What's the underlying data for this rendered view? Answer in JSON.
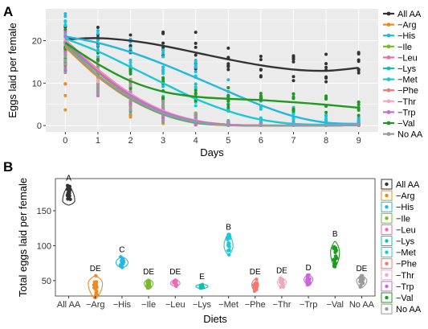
{
  "chart_data": [
    {
      "panel": "A",
      "type": "scatter",
      "xlabel": "Days",
      "ylabel": "Eggs laid per female",
      "xlim": [
        -0.6,
        9.6
      ],
      "ylim": [
        -1.5,
        27.5
      ],
      "x_ticks": [
        0,
        1,
        2,
        3,
        4,
        5,
        6,
        7,
        8,
        9
      ],
      "y_ticks": [
        0,
        10,
        20
      ],
      "grid": true,
      "legend_position": "right",
      "series": [
        {
          "name": "All AA",
          "color": "#333333",
          "fit": [
            20.3,
            20.6,
            20.0,
            18.8,
            17.2,
            15.6,
            14.2,
            13.2,
            12.9,
            13.6
          ],
          "points_min": [
            17,
            18,
            17,
            15,
            13,
            11,
            10,
            10,
            9,
            11
          ],
          "points_max": [
            24,
            23.5,
            23,
            23,
            22,
            19,
            18,
            17,
            17,
            17.5
          ]
        },
        {
          "name": "−Arg",
          "color": "#f08a1e",
          "fit": [
            18.5,
            11.5,
            6.2,
            2.6,
            0.6,
            0.1,
            0.0,
            0.0,
            0.0,
            0.1
          ],
          "points_min": [
            1.5,
            3,
            1,
            0,
            0,
            0,
            0,
            0,
            0,
            0
          ],
          "points_max": [
            21,
            14,
            10,
            6,
            3,
            1,
            0.5,
            0.5,
            0.5,
            0.5
          ]
        },
        {
          "name": "−His",
          "color": "#22b8e0",
          "fit": [
            21.0,
            19.5,
            17.3,
            14.5,
            11.3,
            8.0,
            4.8,
            2.2,
            0.7,
            0.4
          ],
          "points_min": [
            16,
            15,
            12,
            9,
            6,
            2,
            0,
            0,
            0,
            0
          ],
          "points_max": [
            26.5,
            22.5,
            21,
            19,
            16,
            13,
            10,
            5,
            3,
            2
          ]
        },
        {
          "name": "−Ile",
          "color": "#7ab82e",
          "fit": [
            19.5,
            12.5,
            7.0,
            3.2,
            1.0,
            0.2,
            0.0,
            0.0,
            0.0,
            0.1
          ],
          "points_min": [
            13,
            7,
            3,
            1,
            0,
            0,
            0,
            0,
            0,
            0
          ],
          "points_max": [
            22,
            16,
            11,
            7,
            3,
            1,
            0.5,
            0.5,
            0.5,
            0.5
          ]
        },
        {
          "name": "−Leu",
          "color": "#ec6ab0",
          "fit": [
            20.0,
            13.0,
            7.3,
            3.4,
            1.1,
            0.2,
            0.0,
            0.0,
            0.0,
            0.1
          ],
          "points_min": [
            12,
            7,
            3,
            1,
            0,
            0,
            0,
            0,
            0,
            0
          ],
          "points_max": [
            23,
            16,
            11,
            7,
            3,
            1,
            0.5,
            0.5,
            0.5,
            0.5
          ]
        },
        {
          "name": "−Lys",
          "color": "#14bfb0",
          "fit": [
            19.0,
            11.8,
            6.4,
            2.7,
            0.7,
            0.1,
            0.0,
            0.0,
            0.0,
            0.1
          ],
          "points_min": [
            13,
            7,
            3,
            1,
            0,
            0,
            0,
            0,
            0,
            0
          ],
          "points_max": [
            22,
            15,
            10,
            6,
            3,
            1,
            0.5,
            0.5,
            0.5,
            0.5
          ]
        },
        {
          "name": "−Met",
          "color": "#1cc8d8",
          "fit": [
            20.5,
            17.5,
            13.8,
            10.0,
            6.3,
            3.4,
            1.4,
            0.4,
            0.2,
            0.4
          ],
          "points_min": [
            15,
            12,
            9,
            6,
            3,
            1,
            0,
            0,
            0,
            0
          ],
          "points_max": [
            25,
            22,
            19,
            15,
            12,
            8,
            6,
            4,
            2,
            1
          ]
        },
        {
          "name": "−Phe",
          "color": "#f47870",
          "fit": [
            20.2,
            13.2,
            7.5,
            3.5,
            1.2,
            0.2,
            0.0,
            0.0,
            0.0,
            0.1
          ],
          "points_min": [
            12,
            7,
            3,
            1,
            0,
            0,
            0,
            0,
            0,
            0
          ],
          "points_max": [
            23,
            16,
            11,
            7,
            3,
            1,
            0.5,
            0.5,
            0.5,
            0.5
          ]
        },
        {
          "name": "−Thr",
          "color": "#f0a8c0",
          "fit": [
            20.0,
            13.0,
            7.4,
            3.5,
            1.2,
            0.2,
            0.0,
            0.0,
            0.0,
            0.1
          ],
          "points_min": [
            12,
            7,
            3,
            1,
            0,
            0,
            0,
            0,
            0,
            0
          ],
          "points_max": [
            23,
            16,
            11,
            7,
            3,
            1,
            0.5,
            0.5,
            0.5,
            0.5
          ]
        },
        {
          "name": "−Trp",
          "color": "#cc66dd",
          "fit": [
            19.8,
            12.8,
            7.2,
            3.3,
            1.1,
            0.2,
            0.0,
            0.0,
            0.0,
            0.1
          ],
          "points_min": [
            12,
            7,
            3,
            1,
            0,
            0,
            0,
            0,
            0,
            0
          ],
          "points_max": [
            22,
            16,
            11,
            7,
            3,
            1,
            0.5,
            0.5,
            0.5,
            0.5
          ]
        },
        {
          "name": "−Val",
          "color": "#1f9a1f",
          "fit": [
            19.5,
            14.5,
            10.5,
            8.0,
            6.8,
            6.3,
            6.0,
            5.5,
            4.9,
            4.2
          ],
          "points_min": [
            14,
            11,
            7,
            6,
            5,
            4,
            4,
            3,
            3,
            2
          ],
          "points_max": [
            23,
            18,
            15,
            12,
            10,
            9,
            8,
            8,
            7,
            6
          ]
        },
        {
          "name": "No AA",
          "color": "#9a9a9a",
          "fit": [
            18.8,
            11.8,
            6.6,
            2.9,
            0.9,
            0.1,
            0.0,
            0.0,
            0.0,
            0.1
          ],
          "points_min": [
            12,
            7,
            3,
            1,
            0,
            0,
            0,
            0,
            0,
            0
          ],
          "points_max": [
            22,
            15,
            10,
            6,
            3,
            1,
            0.5,
            0.5,
            0.5,
            0.5
          ]
        }
      ]
    },
    {
      "panel": "B",
      "type": "violin",
      "xlabel": "Diets",
      "ylabel": "Total eggs laid per female",
      "ylim": [
        28,
        196
      ],
      "y_ticks": [
        50,
        100,
        150
      ],
      "grid": false,
      "legend_position": "right",
      "categories": [
        "All AA",
        "−Arg",
        "−His",
        "−Ile",
        "−Leu",
        "−Lys",
        "−Met",
        "−Phe",
        "−Thr",
        "−Trp",
        "−Val",
        "No AA"
      ],
      "colors": [
        "#333333",
        "#f08a1e",
        "#22b8e0",
        "#7ab82e",
        "#ec6ab0",
        "#14bfb0",
        "#1cc8d8",
        "#f47870",
        "#f0a8c0",
        "#cc66dd",
        "#1f9a1f",
        "#9a9a9a"
      ],
      "letters": [
        "A",
        "DE",
        "C",
        "DE",
        "DE",
        "E",
        "B",
        "DE",
        "DE",
        "D",
        "B",
        "DE"
      ],
      "center": [
        164,
        46,
        76,
        46,
        46,
        42,
        100,
        44,
        48,
        52,
        90,
        50
      ],
      "min": [
        158,
        24,
        68,
        38,
        42,
        38,
        87,
        35,
        40,
        44,
        70,
        40
      ],
      "max": [
        186,
        57,
        84,
        52,
        52,
        45,
        116,
        52,
        54,
        58,
        106,
        57
      ],
      "width": [
        0.42,
        0.5,
        0.42,
        0.3,
        0.32,
        0.42,
        0.3,
        0.22,
        0.3,
        0.3,
        0.3,
        0.35
      ]
    }
  ],
  "panel_a_label": "A",
  "panel_b_label": "B"
}
